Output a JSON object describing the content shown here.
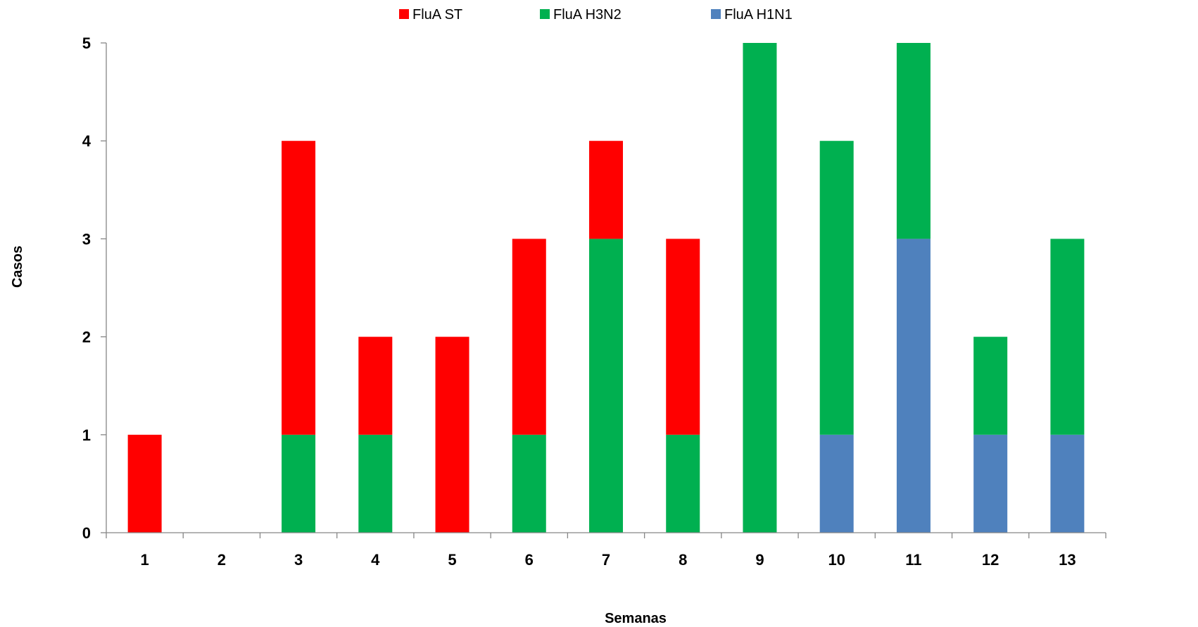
{
  "chart_data": {
    "type": "bar",
    "stacked": true,
    "title": "",
    "xlabel": "Semanas",
    "ylabel": "Casos",
    "ylim": [
      0,
      5
    ],
    "yticks": [
      "0",
      "1",
      "2",
      "3",
      "4",
      "5"
    ],
    "categories": [
      "1",
      "2",
      "3",
      "4",
      "5",
      "6",
      "7",
      "8",
      "9",
      "10",
      "11",
      "12",
      "13"
    ],
    "grid": false,
    "legend_position": "top",
    "legend_order": [
      "FluA ST",
      "FluA H3N2",
      "FluA H1N1"
    ],
    "stack_order_bottom_to_top": [
      "FluA H1N1",
      "FluA H3N2",
      "FluA ST"
    ],
    "series": [
      {
        "name": "FluA ST",
        "color": "#ff0000",
        "values": [
          1,
          0,
          3,
          1,
          2,
          2,
          1,
          2,
          0,
          0,
          0,
          0,
          0
        ]
      },
      {
        "name": "FluA H3N2",
        "color": "#00b050",
        "values": [
          0,
          0,
          1,
          1,
          0,
          1,
          3,
          1,
          5,
          3,
          2,
          1,
          2
        ]
      },
      {
        "name": "FluA H1N1",
        "color": "#4f81bd",
        "values": [
          0,
          0,
          0,
          0,
          0,
          0,
          0,
          0,
          0,
          1,
          3,
          1,
          1
        ]
      }
    ]
  }
}
